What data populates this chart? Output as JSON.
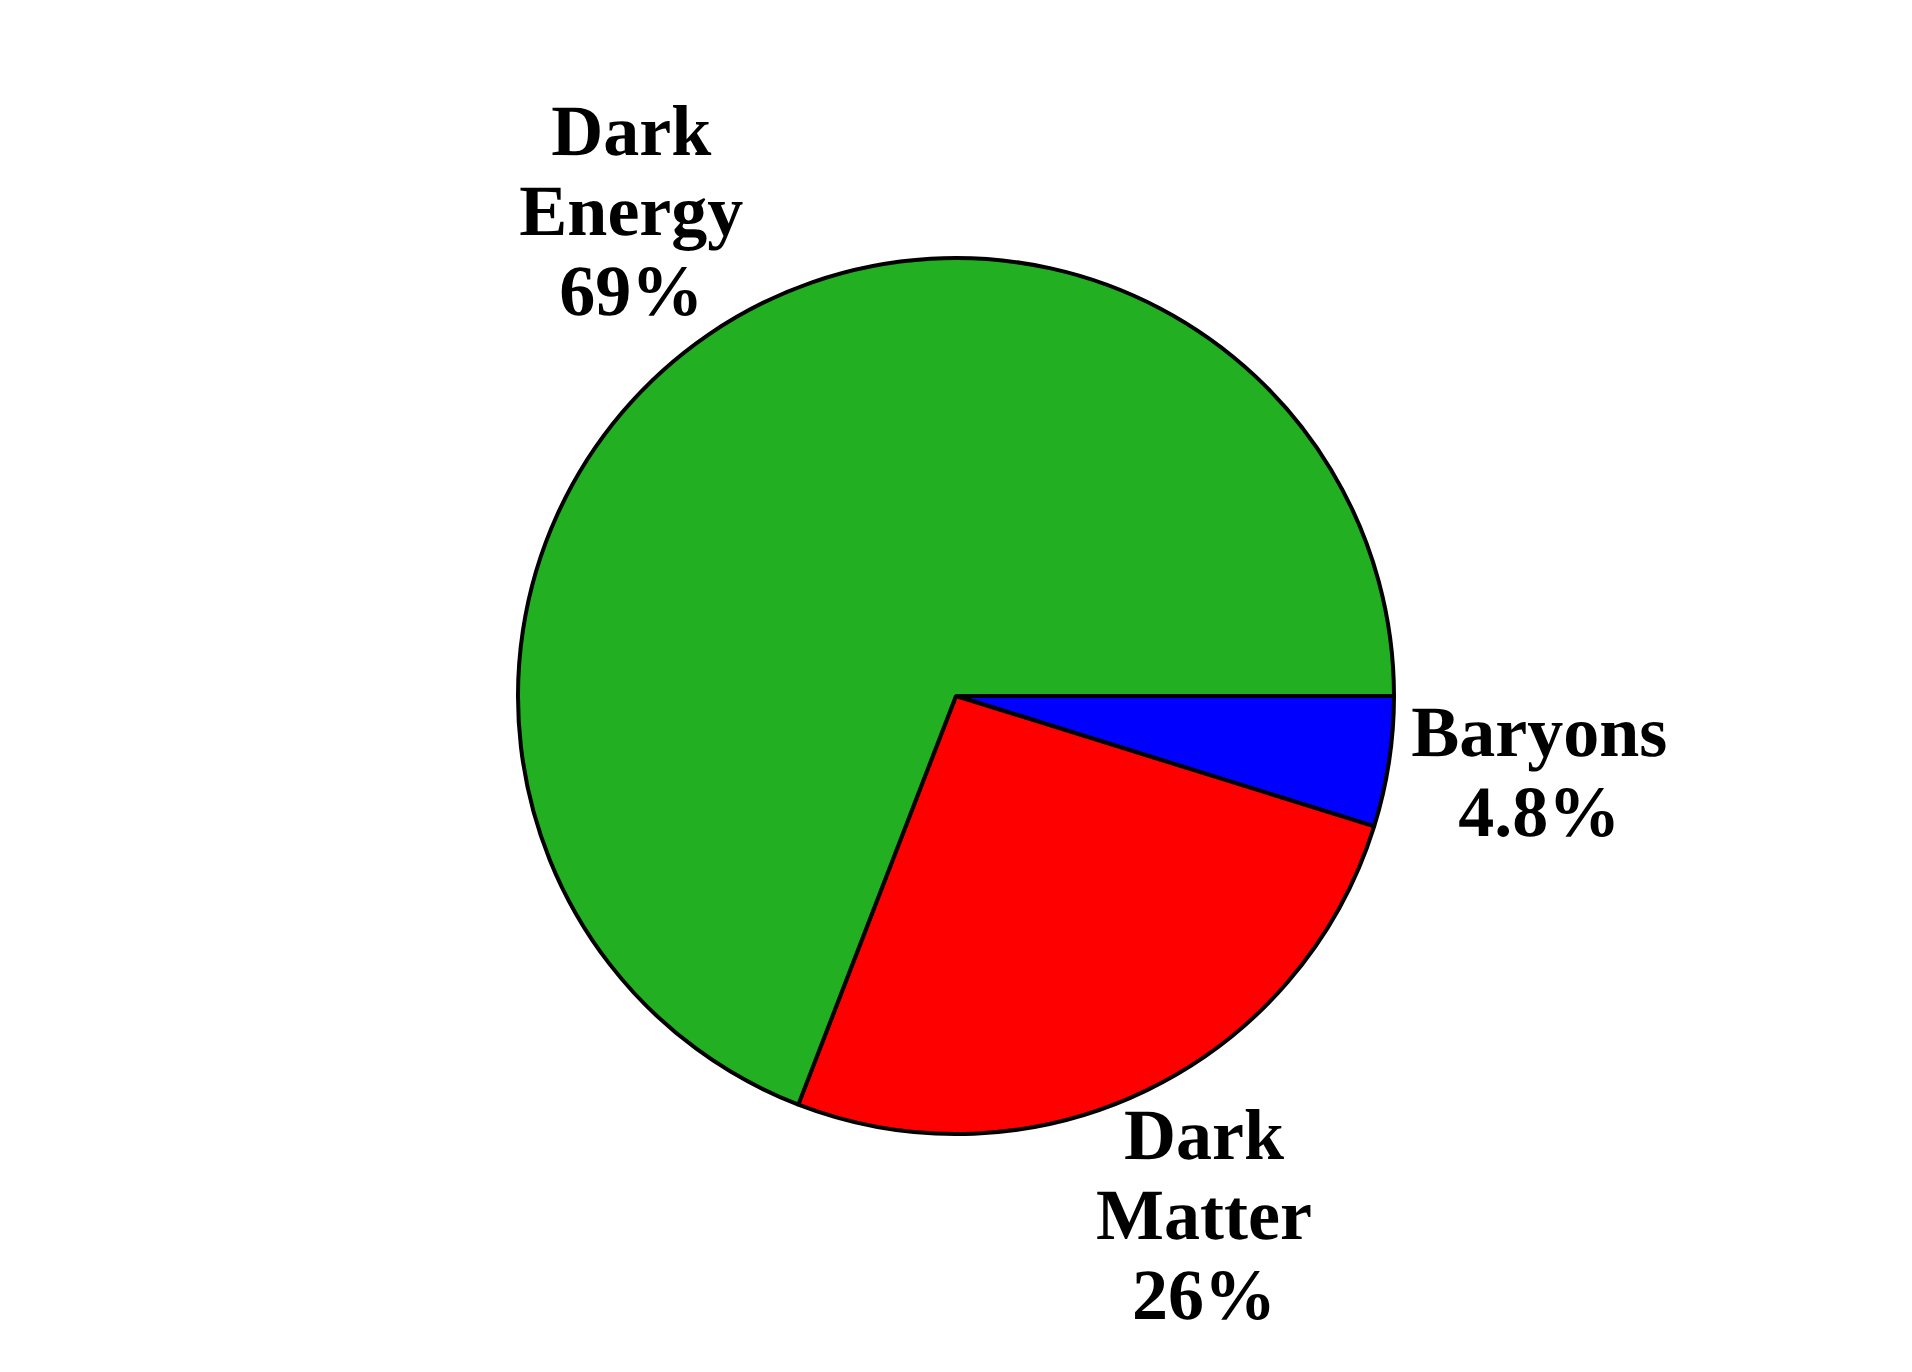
{
  "chart_data": {
    "type": "pie",
    "categories": [
      "Baryons",
      "Dark Matter",
      "Dark Energy"
    ],
    "values": [
      4.8,
      26,
      69
    ],
    "value_labels": [
      "4.8%",
      "26%",
      "69%"
    ],
    "colors": [
      "#0000ff",
      "#ff0000",
      "#22b022"
    ],
    "legend": false
  }
}
